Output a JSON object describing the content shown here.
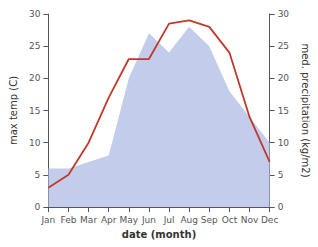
{
  "chart_data": {
    "type": "line",
    "xlabel": "date (month)",
    "ylabel": "max temp (C)",
    "y2label": "med. precipitation (kg/m2)",
    "categories": [
      "Jan",
      "Feb",
      "Mar",
      "Apr",
      "May",
      "Jun",
      "Jul",
      "Aug",
      "Sep",
      "Oct",
      "Nov",
      "Dec"
    ],
    "series": [
      {
        "type": "area",
        "color": "#b8c4e8",
        "axis": "y2",
        "values": [
          6,
          6,
          7,
          8,
          20,
          27,
          24,
          28,
          25,
          18,
          14,
          10
        ]
      },
      {
        "type": "line",
        "color": "#c0392b",
        "values": [
          3,
          5,
          10,
          17,
          23,
          23,
          28.5,
          29,
          28,
          24,
          14,
          7
        ]
      }
    ],
    "ylim": [
      0,
      30
    ],
    "yticks": [
      0,
      5,
      10,
      15,
      20,
      25,
      30
    ],
    "y2lim": [
      0,
      30
    ],
    "y2ticks": [
      0,
      5,
      10,
      15,
      20,
      25,
      30
    ],
    "grid": false
  }
}
